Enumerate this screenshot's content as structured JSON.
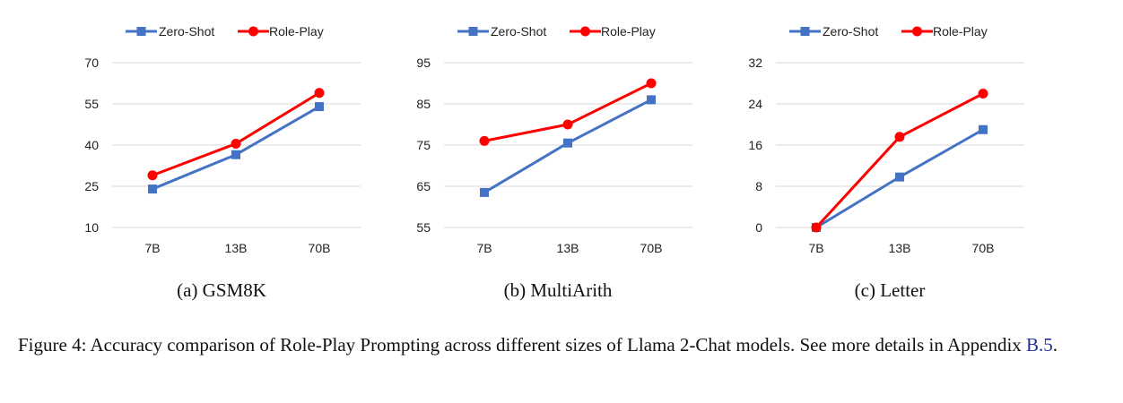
{
  "colors": {
    "zero_shot": "#4472C4",
    "role_play": "#FF0000",
    "grid": "#d9d9d9",
    "ref_link": "#1f2f9a"
  },
  "legend": {
    "zero_shot": "Zero-Shot",
    "role_play": "Role-Play"
  },
  "subcaptions": {
    "a": "(a)  GSM8K",
    "b": "(b)  MultiArith",
    "c": "(c)  Letter"
  },
  "caption": {
    "text": "Figure 4: Accuracy comparison of Role-Play Prompting across different sizes of Llama 2-Chat models. See more details in Appendix ",
    "ref": "B.5",
    "end": "."
  },
  "chart_data": [
    {
      "type": "line",
      "categories": [
        "7B",
        "13B",
        "70B"
      ],
      "yticks": [
        10,
        25,
        40,
        55,
        70
      ],
      "ylim": [
        10,
        70
      ],
      "grid": "horizontal",
      "legend_position": "top",
      "series": [
        {
          "name": "Zero-Shot",
          "marker": "square",
          "values": [
            24,
            36.5,
            54
          ]
        },
        {
          "name": "Role-Play",
          "marker": "circle",
          "values": [
            29,
            40.5,
            59
          ]
        }
      ]
    },
    {
      "type": "line",
      "categories": [
        "7B",
        "13B",
        "70B"
      ],
      "yticks": [
        55,
        65,
        75,
        85,
        95
      ],
      "ylim": [
        55,
        95
      ],
      "grid": "horizontal",
      "legend_position": "top",
      "series": [
        {
          "name": "Zero-Shot",
          "marker": "square",
          "values": [
            63.5,
            75.5,
            86
          ]
        },
        {
          "name": "Role-Play",
          "marker": "circle",
          "values": [
            76,
            80,
            90
          ]
        }
      ]
    },
    {
      "type": "line",
      "categories": [
        "7B",
        "13B",
        "70B"
      ],
      "yticks": [
        0,
        8,
        16,
        24,
        32
      ],
      "ylim": [
        0,
        32
      ],
      "grid": "horizontal",
      "legend_position": "top",
      "series": [
        {
          "name": "Zero-Shot",
          "marker": "square",
          "values": [
            0,
            9.8,
            19
          ]
        },
        {
          "name": "Role-Play",
          "marker": "circle",
          "values": [
            0,
            17.6,
            26
          ]
        }
      ]
    }
  ]
}
